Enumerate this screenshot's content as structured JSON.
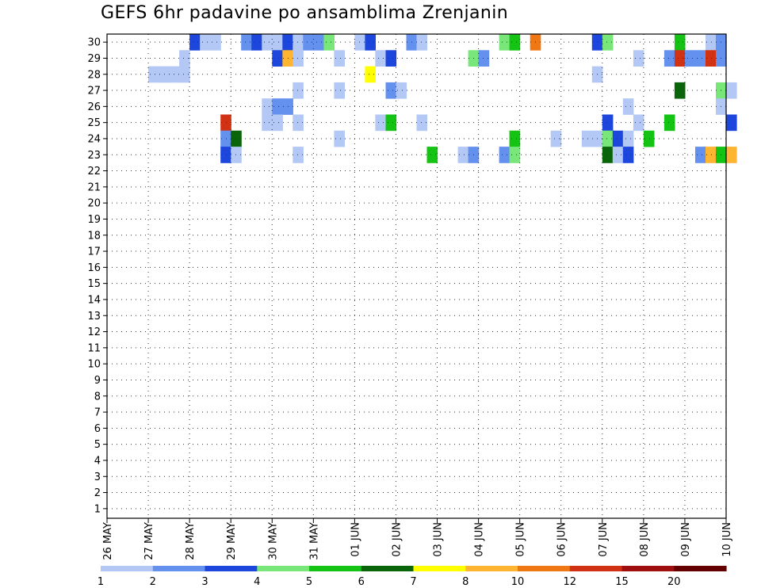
{
  "chart_data": {
    "type": "heatmap",
    "title": "GEFS 6hr padavine po ansamblima Zrenjanin",
    "xlabel": "",
    "ylabel": "",
    "x_tick_labels": [
      "26 MAY",
      "27 MAY",
      "28 MAY",
      "29 MAY",
      "30 MAY",
      "31 MAY",
      "01 JUN",
      "02 JUN",
      "03 JUN",
      "04 JUN",
      "05 JUN",
      "06 JUN",
      "07 JUN",
      "08 JUN",
      "09 JUN",
      "10 JUN"
    ],
    "y_range": [
      1,
      30
    ],
    "grid": true,
    "colorbar_labels": [
      "1",
      "2",
      "3",
      "4",
      "5",
      "6",
      "7",
      "8",
      "10",
      "12",
      "15",
      "20"
    ],
    "colorbar_colors": [
      "#b4c8f5",
      "#6490ee",
      "#1c46dc",
      "#78e678",
      "#14c314",
      "#0a640a",
      "#ffff00",
      "#ffb432",
      "#f07814",
      "#d23214",
      "#a00f0f",
      "#640000"
    ],
    "levels": [
      1,
      2,
      3,
      4,
      5,
      6,
      7,
      8,
      10,
      12,
      15,
      20
    ],
    "note_values": "mm per 6h; value = lower bound of colour bin",
    "x_time_step": "6h",
    "cells": [
      {
        "day": "28 MAY",
        "step": 0,
        "member": 30,
        "mm": 3
      },
      {
        "day": "28 MAY",
        "step": 1,
        "member": 30,
        "mm": 1
      },
      {
        "day": "28 MAY",
        "step": 2,
        "member": 30,
        "mm": 1
      },
      {
        "day": "29 MAY",
        "step": 1,
        "member": 30,
        "mm": 2
      },
      {
        "day": "29 MAY",
        "step": 2,
        "member": 30,
        "mm": 3
      },
      {
        "day": "29 MAY",
        "step": 3,
        "member": 30,
        "mm": 1
      },
      {
        "day": "30 MAY",
        "step": 0,
        "member": 30,
        "mm": 1
      },
      {
        "day": "30 MAY",
        "step": 1,
        "member": 30,
        "mm": 3
      },
      {
        "day": "30 MAY",
        "step": 2,
        "member": 30,
        "mm": 1
      },
      {
        "day": "30 MAY",
        "step": 3,
        "member": 30,
        "mm": 2
      },
      {
        "day": "31 MAY",
        "step": 0,
        "member": 30,
        "mm": 2
      },
      {
        "day": "31 MAY",
        "step": 1,
        "member": 30,
        "mm": 4
      },
      {
        "day": "01 JUN",
        "step": 0,
        "member": 30,
        "mm": 1
      },
      {
        "day": "01 JUN",
        "step": 1,
        "member": 30,
        "mm": 3
      },
      {
        "day": "02 JUN",
        "step": 1,
        "member": 30,
        "mm": 2
      },
      {
        "day": "02 JUN",
        "step": 2,
        "member": 30,
        "mm": 1
      },
      {
        "day": "04 JUN",
        "step": 2,
        "member": 30,
        "mm": 4
      },
      {
        "day": "04 JUN",
        "step": 3,
        "member": 30,
        "mm": 5
      },
      {
        "day": "05 JUN",
        "step": 1,
        "member": 30,
        "mm": 10
      },
      {
        "day": "06 JUN",
        "step": 3,
        "member": 30,
        "mm": 3
      },
      {
        "day": "07 JUN",
        "step": 0,
        "member": 30,
        "mm": 4
      },
      {
        "day": "08 JUN",
        "step": 3,
        "member": 30,
        "mm": 5
      },
      {
        "day": "09 JUN",
        "step": 2,
        "member": 30,
        "mm": 1
      },
      {
        "day": "09 JUN",
        "step": 3,
        "member": 30,
        "mm": 2
      },
      {
        "day": "27 MAY",
        "step": 3,
        "member": 29,
        "mm": 1
      },
      {
        "day": "30 MAY",
        "step": 0,
        "member": 29,
        "mm": 3
      },
      {
        "day": "30 MAY",
        "step": 1,
        "member": 29,
        "mm": 8
      },
      {
        "day": "30 MAY",
        "step": 2,
        "member": 29,
        "mm": 1
      },
      {
        "day": "31 MAY",
        "step": 2,
        "member": 29,
        "mm": 1
      },
      {
        "day": "01 JUN",
        "step": 2,
        "member": 29,
        "mm": 1
      },
      {
        "day": "01 JUN",
        "step": 3,
        "member": 29,
        "mm": 3
      },
      {
        "day": "03 JUN",
        "step": 3,
        "member": 29,
        "mm": 4
      },
      {
        "day": "04 JUN",
        "step": 0,
        "member": 29,
        "mm": 2
      },
      {
        "day": "07 JUN",
        "step": 3,
        "member": 29,
        "mm": 1
      },
      {
        "day": "08 JUN",
        "step": 2,
        "member": 29,
        "mm": 2
      },
      {
        "day": "08 JUN",
        "step": 3,
        "member": 29,
        "mm": 12
      },
      {
        "day": "09 JUN",
        "step": 0,
        "member": 29,
        "mm": 2
      },
      {
        "day": "09 JUN",
        "step": 1,
        "member": 29,
        "mm": 2
      },
      {
        "day": "09 JUN",
        "step": 2,
        "member": 29,
        "mm": 12
      },
      {
        "day": "09 JUN",
        "step": 3,
        "member": 29,
        "mm": 2
      },
      {
        "day": "27 MAY",
        "step": 0,
        "member": 28,
        "mm": 1
      },
      {
        "day": "27 MAY",
        "step": 1,
        "member": 28,
        "mm": 1
      },
      {
        "day": "27 MAY",
        "step": 2,
        "member": 28,
        "mm": 1
      },
      {
        "day": "27 MAY",
        "step": 3,
        "member": 28,
        "mm": 1
      },
      {
        "day": "01 JUN",
        "step": 1,
        "member": 28,
        "mm": 7
      },
      {
        "day": "06 JUN",
        "step": 3,
        "member": 28,
        "mm": 1
      },
      {
        "day": "30 MAY",
        "step": 2,
        "member": 27,
        "mm": 1
      },
      {
        "day": "31 MAY",
        "step": 2,
        "member": 27,
        "mm": 1
      },
      {
        "day": "01 JUN",
        "step": 3,
        "member": 27,
        "mm": 2
      },
      {
        "day": "02 JUN",
        "step": 0,
        "member": 27,
        "mm": 1
      },
      {
        "day": "08 JUN",
        "step": 3,
        "member": 27,
        "mm": 6
      },
      {
        "day": "09 JUN",
        "step": 3,
        "member": 27,
        "mm": 4
      },
      {
        "day": "10 JUN",
        "step": 0,
        "member": 27,
        "mm": 1
      },
      {
        "day": "29 MAY",
        "step": 3,
        "member": 26,
        "mm": 1
      },
      {
        "day": "30 MAY",
        "step": 0,
        "member": 26,
        "mm": 2
      },
      {
        "day": "30 MAY",
        "step": 1,
        "member": 26,
        "mm": 2
      },
      {
        "day": "07 JUN",
        "step": 2,
        "member": 26,
        "mm": 1
      },
      {
        "day": "09 JUN",
        "step": 3,
        "member": 26,
        "mm": 1
      },
      {
        "day": "28 MAY",
        "step": 3,
        "member": 25,
        "mm": 12
      },
      {
        "day": "29 MAY",
        "step": 3,
        "member": 25,
        "mm": 1
      },
      {
        "day": "30 MAY",
        "step": 0,
        "member": 25,
        "mm": 1
      },
      {
        "day": "30 MAY",
        "step": 2,
        "member": 25,
        "mm": 1
      },
      {
        "day": "01 JUN",
        "step": 2,
        "member": 25,
        "mm": 1
      },
      {
        "day": "01 JUN",
        "step": 3,
        "member": 25,
        "mm": 5
      },
      {
        "day": "02 JUN",
        "step": 2,
        "member": 25,
        "mm": 1
      },
      {
        "day": "07 JUN",
        "step": 0,
        "member": 25,
        "mm": 3
      },
      {
        "day": "07 JUN",
        "step": 3,
        "member": 25,
        "mm": 1
      },
      {
        "day": "08 JUN",
        "step": 2,
        "member": 25,
        "mm": 5
      },
      {
        "day": "10 JUN",
        "step": 0,
        "member": 25,
        "mm": 3
      },
      {
        "day": "28 MAY",
        "step": 3,
        "member": 24,
        "mm": 2
      },
      {
        "day": "29 MAY",
        "step": 0,
        "member": 24,
        "mm": 6
      },
      {
        "day": "31 MAY",
        "step": 2,
        "member": 24,
        "mm": 1
      },
      {
        "day": "04 JUN",
        "step": 3,
        "member": 24,
        "mm": 5
      },
      {
        "day": "05 JUN",
        "step": 3,
        "member": 24,
        "mm": 1
      },
      {
        "day": "06 JUN",
        "step": 2,
        "member": 24,
        "mm": 1
      },
      {
        "day": "06 JUN",
        "step": 3,
        "member": 24,
        "mm": 1
      },
      {
        "day": "07 JUN",
        "step": 0,
        "member": 24,
        "mm": 4
      },
      {
        "day": "07 JUN",
        "step": 1,
        "member": 24,
        "mm": 3
      },
      {
        "day": "07 JUN",
        "step": 2,
        "member": 24,
        "mm": 1
      },
      {
        "day": "08 JUN",
        "step": 0,
        "member": 24,
        "mm": 5
      },
      {
        "day": "28 MAY",
        "step": 3,
        "member": 23,
        "mm": 3
      },
      {
        "day": "29 MAY",
        "step": 0,
        "member": 23,
        "mm": 1
      },
      {
        "day": "30 MAY",
        "step": 2,
        "member": 23,
        "mm": 1
      },
      {
        "day": "02 JUN",
        "step": 3,
        "member": 23,
        "mm": 5
      },
      {
        "day": "03 JUN",
        "step": 2,
        "member": 23,
        "mm": 1
      },
      {
        "day": "03 JUN",
        "step": 3,
        "member": 23,
        "mm": 2
      },
      {
        "day": "04 JUN",
        "step": 2,
        "member": 23,
        "mm": 2
      },
      {
        "day": "04 JUN",
        "step": 3,
        "member": 23,
        "mm": 4
      },
      {
        "day": "07 JUN",
        "step": 0,
        "member": 23,
        "mm": 6
      },
      {
        "day": "07 JUN",
        "step": 1,
        "member": 23,
        "mm": 1
      },
      {
        "day": "07 JUN",
        "step": 2,
        "member": 23,
        "mm": 3
      },
      {
        "day": "09 JUN",
        "step": 1,
        "member": 23,
        "mm": 2
      },
      {
        "day": "09 JUN",
        "step": 2,
        "member": 23,
        "mm": 8
      },
      {
        "day": "09 JUN",
        "step": 3,
        "member": 23,
        "mm": 5
      },
      {
        "day": "10 JUN",
        "step": 0,
        "member": 23,
        "mm": 8
      }
    ]
  }
}
